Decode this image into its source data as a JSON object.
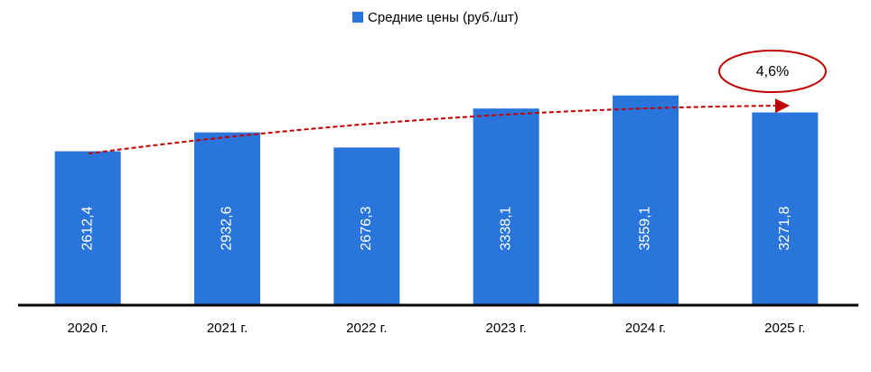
{
  "chart_data": {
    "type": "bar",
    "legend": "Средние цены (руб./шт)",
    "color": "#2a75dc",
    "categories": [
      "2020 г.",
      "2021 г.",
      "2022 г.",
      "2023 г.",
      "2024 г.",
      "2025 г."
    ],
    "values": [
      2612.4,
      2932.6,
      2676.3,
      3338.1,
      3559.1,
      3271.8
    ],
    "value_labels": [
      "2612,4",
      "2932,6",
      "2676,3",
      "3338,1",
      "3559,1",
      "3271,8"
    ],
    "ylim": [
      0,
      4000
    ],
    "annotation": "4,6%"
  }
}
